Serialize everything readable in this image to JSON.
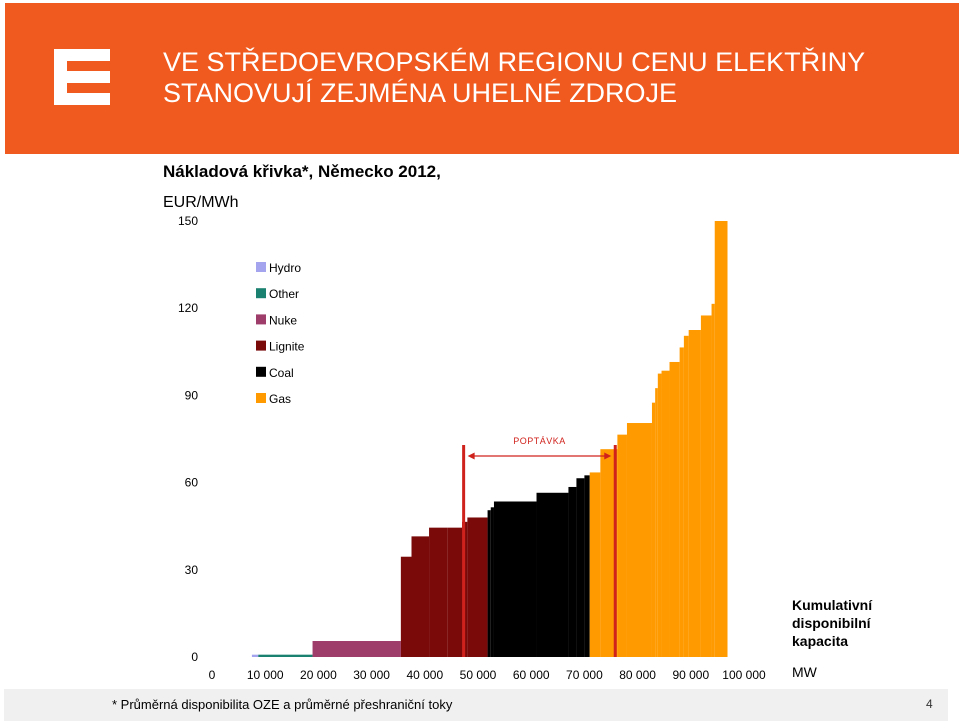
{
  "header": {
    "title_line1": "VE STŘEDOEVROPSKÉM REGIONU CENU ELEKTŘINY",
    "title_line2": "STANOVUJÍ ZEJMÉNA UHELNÉ ZDROJE",
    "bg_color": "#f05a1e"
  },
  "logo": {
    "icon": "cez-logo-icon"
  },
  "subtitle": "Nákladová křivka*, Německo 2012,",
  "unit_label": "EUR/MWh",
  "capacity_label": "Kumulativní disponibilní kapacita",
  "capacity_unit": "MW",
  "footnote": "* Průměrná disponibilita OZE a průměrné přeshraniční toky",
  "page_number": "4",
  "chart_data": {
    "type": "area",
    "title": "Nákladová křivka*, Německo 2012,",
    "ylabel": "EUR/MWh",
    "xlabel": "Kumulativní disponibilní kapacita MW",
    "xlim": [
      0,
      100000
    ],
    "ylim": [
      0,
      150
    ],
    "x_ticks": [
      0,
      10000,
      20000,
      30000,
      40000,
      50000,
      60000,
      70000,
      80000,
      90000,
      100000
    ],
    "x_tick_labels": [
      "0",
      "10 000",
      "20 000",
      "30 000",
      "40 000",
      "50 000",
      "60 000",
      "70 000",
      "80 000",
      "90 000",
      "100 000"
    ],
    "y_ticks": [
      0,
      30,
      60,
      90,
      120,
      150
    ],
    "y_tick_labels": [
      "0",
      "30",
      "60",
      "90",
      "120",
      "150"
    ],
    "grid": false,
    "legend_position": "top-left",
    "series": [
      {
        "name": "Hydro",
        "color": "#a4a4ee"
      },
      {
        "name": "Other",
        "color": "#1a8070"
      },
      {
        "name": "Nuke",
        "color": "#9e3c6a"
      },
      {
        "name": "Lignite",
        "color": "#7a0a0a"
      },
      {
        "name": "Coal",
        "color": "#000000"
      },
      {
        "name": "Gas",
        "color": "#ff9a00"
      }
    ],
    "steps": [
      {
        "x0": 7500,
        "x1": 8700,
        "y": 0.8,
        "series": "Hydro"
      },
      {
        "x0": 8700,
        "x1": 18900,
        "y": 0.8,
        "series": "Other"
      },
      {
        "x0": 18900,
        "x1": 35500,
        "y": 5.5,
        "series": "Nuke"
      },
      {
        "x0": 35500,
        "x1": 37500,
        "y": 34.5,
        "series": "Lignite"
      },
      {
        "x0": 37500,
        "x1": 40800,
        "y": 41.5,
        "series": "Lignite"
      },
      {
        "x0": 40800,
        "x1": 44300,
        "y": 44.5,
        "series": "Lignite"
      },
      {
        "x0": 44300,
        "x1": 47000,
        "y": 44.5,
        "series": "Lignite"
      },
      {
        "x0": 47000,
        "x1": 48000,
        "y": 46.5,
        "series": "Lignite"
      },
      {
        "x0": 48000,
        "x1": 51800,
        "y": 48.0,
        "series": "Lignite"
      },
      {
        "x0": 51800,
        "x1": 52400,
        "y": 50.5,
        "series": "Coal"
      },
      {
        "x0": 52400,
        "x1": 53000,
        "y": 51.5,
        "series": "Coal"
      },
      {
        "x0": 53000,
        "x1": 61000,
        "y": 53.5,
        "series": "Coal"
      },
      {
        "x0": 61000,
        "x1": 67000,
        "y": 56.5,
        "series": "Coal"
      },
      {
        "x0": 67000,
        "x1": 68500,
        "y": 58.5,
        "series": "Coal"
      },
      {
        "x0": 68500,
        "x1": 70000,
        "y": 61.5,
        "series": "Coal"
      },
      {
        "x0": 70000,
        "x1": 71000,
        "y": 62.5,
        "series": "Coal"
      },
      {
        "x0": 71000,
        "x1": 73000,
        "y": 63.5,
        "series": "Gas"
      },
      {
        "x0": 73000,
        "x1": 76200,
        "y": 71.5,
        "series": "Gas"
      },
      {
        "x0": 76200,
        "x1": 78000,
        "y": 76.5,
        "series": "Gas"
      },
      {
        "x0": 78000,
        "x1": 82700,
        "y": 80.5,
        "series": "Gas"
      },
      {
        "x0": 82700,
        "x1": 83300,
        "y": 87.5,
        "series": "Gas"
      },
      {
        "x0": 83300,
        "x1": 83800,
        "y": 92.5,
        "series": "Gas"
      },
      {
        "x0": 83800,
        "x1": 84500,
        "y": 97.5,
        "series": "Gas"
      },
      {
        "x0": 84500,
        "x1": 86000,
        "y": 98.5,
        "series": "Gas"
      },
      {
        "x0": 86000,
        "x1": 87900,
        "y": 101.5,
        "series": "Gas"
      },
      {
        "x0": 87900,
        "x1": 88700,
        "y": 106.5,
        "series": "Gas"
      },
      {
        "x0": 88700,
        "x1": 89600,
        "y": 110.5,
        "series": "Gas"
      },
      {
        "x0": 89600,
        "x1": 91900,
        "y": 112.5,
        "series": "Gas"
      },
      {
        "x0": 91900,
        "x1": 93900,
        "y": 117.5,
        "series": "Gas"
      },
      {
        "x0": 93900,
        "x1": 94500,
        "y": 121.5,
        "series": "Gas"
      },
      {
        "x0": 94500,
        "x1": 96900,
        "y": 150.0,
        "series": "Gas"
      }
    ],
    "demand": {
      "label": "POPTÁVKA",
      "from": 47300,
      "to": 75800,
      "color": "#d0221c"
    }
  }
}
